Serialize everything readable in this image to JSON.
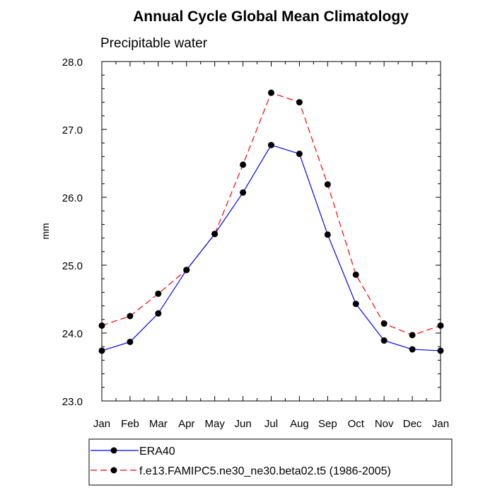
{
  "chart_data": {
    "type": "line",
    "title": "Annual Cycle Global Mean Climatology",
    "subtitle": "Precipitable water",
    "xlabel": "",
    "ylabel": "mm",
    "categories": [
      "Jan",
      "Feb",
      "Mar",
      "Apr",
      "May",
      "Jun",
      "Jul",
      "Aug",
      "Sep",
      "Oct",
      "Nov",
      "Dec",
      "Jan"
    ],
    "ylim": [
      23.0,
      28.0
    ],
    "yticks": [
      "23.0",
      "24.0",
      "25.0",
      "26.0",
      "27.0",
      "28.0"
    ],
    "grid": false,
    "legend_position": "bottom",
    "series": [
      {
        "name": "ERA40",
        "color": "#0000ff",
        "dashed": false,
        "values": [
          23.74,
          23.87,
          24.29,
          24.93,
          25.46,
          26.07,
          26.77,
          26.64,
          25.45,
          24.43,
          23.89,
          23.76,
          23.74
        ]
      },
      {
        "name": "f.e13.FAMIPC5.ne30_ne30.beta02.t5 (1986-2005)",
        "color": "#ff0000",
        "dashed": true,
        "values": [
          24.11,
          24.25,
          24.58,
          24.93,
          25.46,
          26.48,
          27.54,
          27.4,
          26.19,
          24.86,
          24.14,
          23.97,
          24.11
        ]
      }
    ]
  }
}
